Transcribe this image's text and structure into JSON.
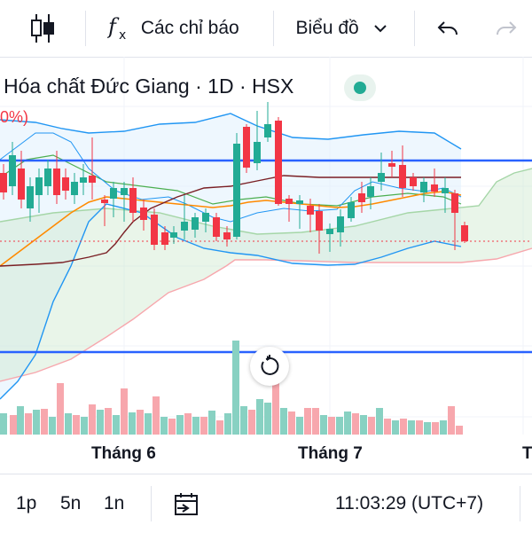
{
  "toolbar": {
    "indicators_label": "Các chỉ báo",
    "chart_type_label": "Biểu đồ"
  },
  "legend": {
    "symbol_text": "Hóa chất Đức Giang · 1D · HSX",
    "partial_percent": "0%)"
  },
  "x_axis": {
    "labels": [
      "Tháng 6",
      "Tháng 7",
      "T"
    ]
  },
  "bottom": {
    "ranges": [
      "1p",
      "5n",
      "1n"
    ],
    "time": "11:03:29 (UTC+7)"
  },
  "icons": {
    "candles": "candlestick-icon",
    "indicators": "fx-icon",
    "dropdown": "chevron-down-icon",
    "undo": "undo-icon",
    "redo": "redo-icon",
    "status": "market-status-dot",
    "reset": "reset-icon",
    "goto": "goto-date-icon"
  },
  "colors": {
    "up": "#22ab94",
    "down": "#f23645",
    "hline": "#2962ff",
    "ma_fast": "#ff8a00",
    "ma_slow": "#7a1f24",
    "bollinger": "#2196f3",
    "ichimoku": "#4caf50",
    "volume_up": "#88d1c2",
    "volume_down": "#f7a7ad"
  }
}
